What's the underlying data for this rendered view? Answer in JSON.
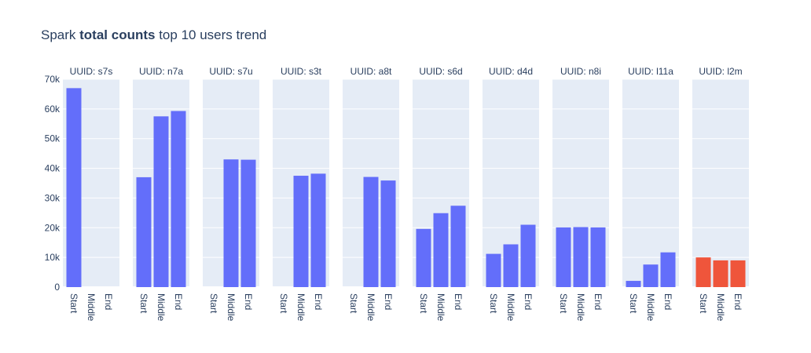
{
  "chart_data": {
    "type": "bar",
    "title_prefix": "Spark ",
    "title_bold": "total counts",
    "title_suffix": " top 10 users trend",
    "categories": [
      "Start",
      "Middle",
      "End"
    ],
    "ylim": [
      0,
      70000
    ],
    "yticks": [
      0,
      10000,
      20000,
      30000,
      40000,
      50000,
      60000,
      70000
    ],
    "ytick_labels": [
      "0",
      "10k",
      "20k",
      "30k",
      "40k",
      "50k",
      "60k",
      "70k"
    ],
    "grid": true,
    "colors": {
      "default": "#636efa",
      "highlight": "#ef553b",
      "plot_bg": "#e5ecf6",
      "text": "#2a3f5f"
    },
    "panels": [
      {
        "label": "UUID: s7s",
        "values": [
          67000,
          null,
          null
        ],
        "color": "#636efa"
      },
      {
        "label": "UUID: n7a",
        "values": [
          37000,
          57500,
          59300
        ],
        "color": "#636efa"
      },
      {
        "label": "UUID: s7u",
        "values": [
          null,
          43000,
          42900
        ],
        "color": "#636efa"
      },
      {
        "label": "UUID: s3t",
        "values": [
          null,
          37500,
          38200
        ],
        "color": "#636efa"
      },
      {
        "label": "UUID: a8t",
        "values": [
          null,
          37100,
          35900
        ],
        "color": "#636efa"
      },
      {
        "label": "UUID: s6d",
        "values": [
          19600,
          24900,
          27400
        ],
        "color": "#636efa"
      },
      {
        "label": "UUID: d4d",
        "values": [
          11200,
          14400,
          21000
        ],
        "color": "#636efa"
      },
      {
        "label": "UUID: n8i",
        "values": [
          20100,
          20200,
          20100
        ],
        "color": "#636efa"
      },
      {
        "label": "UUID: l11a",
        "values": [
          2100,
          7600,
          11700
        ],
        "color": "#636efa"
      },
      {
        "label": "UUID: l2m",
        "values": [
          10000,
          9000,
          9000
        ],
        "color": "#ef553b"
      }
    ]
  }
}
